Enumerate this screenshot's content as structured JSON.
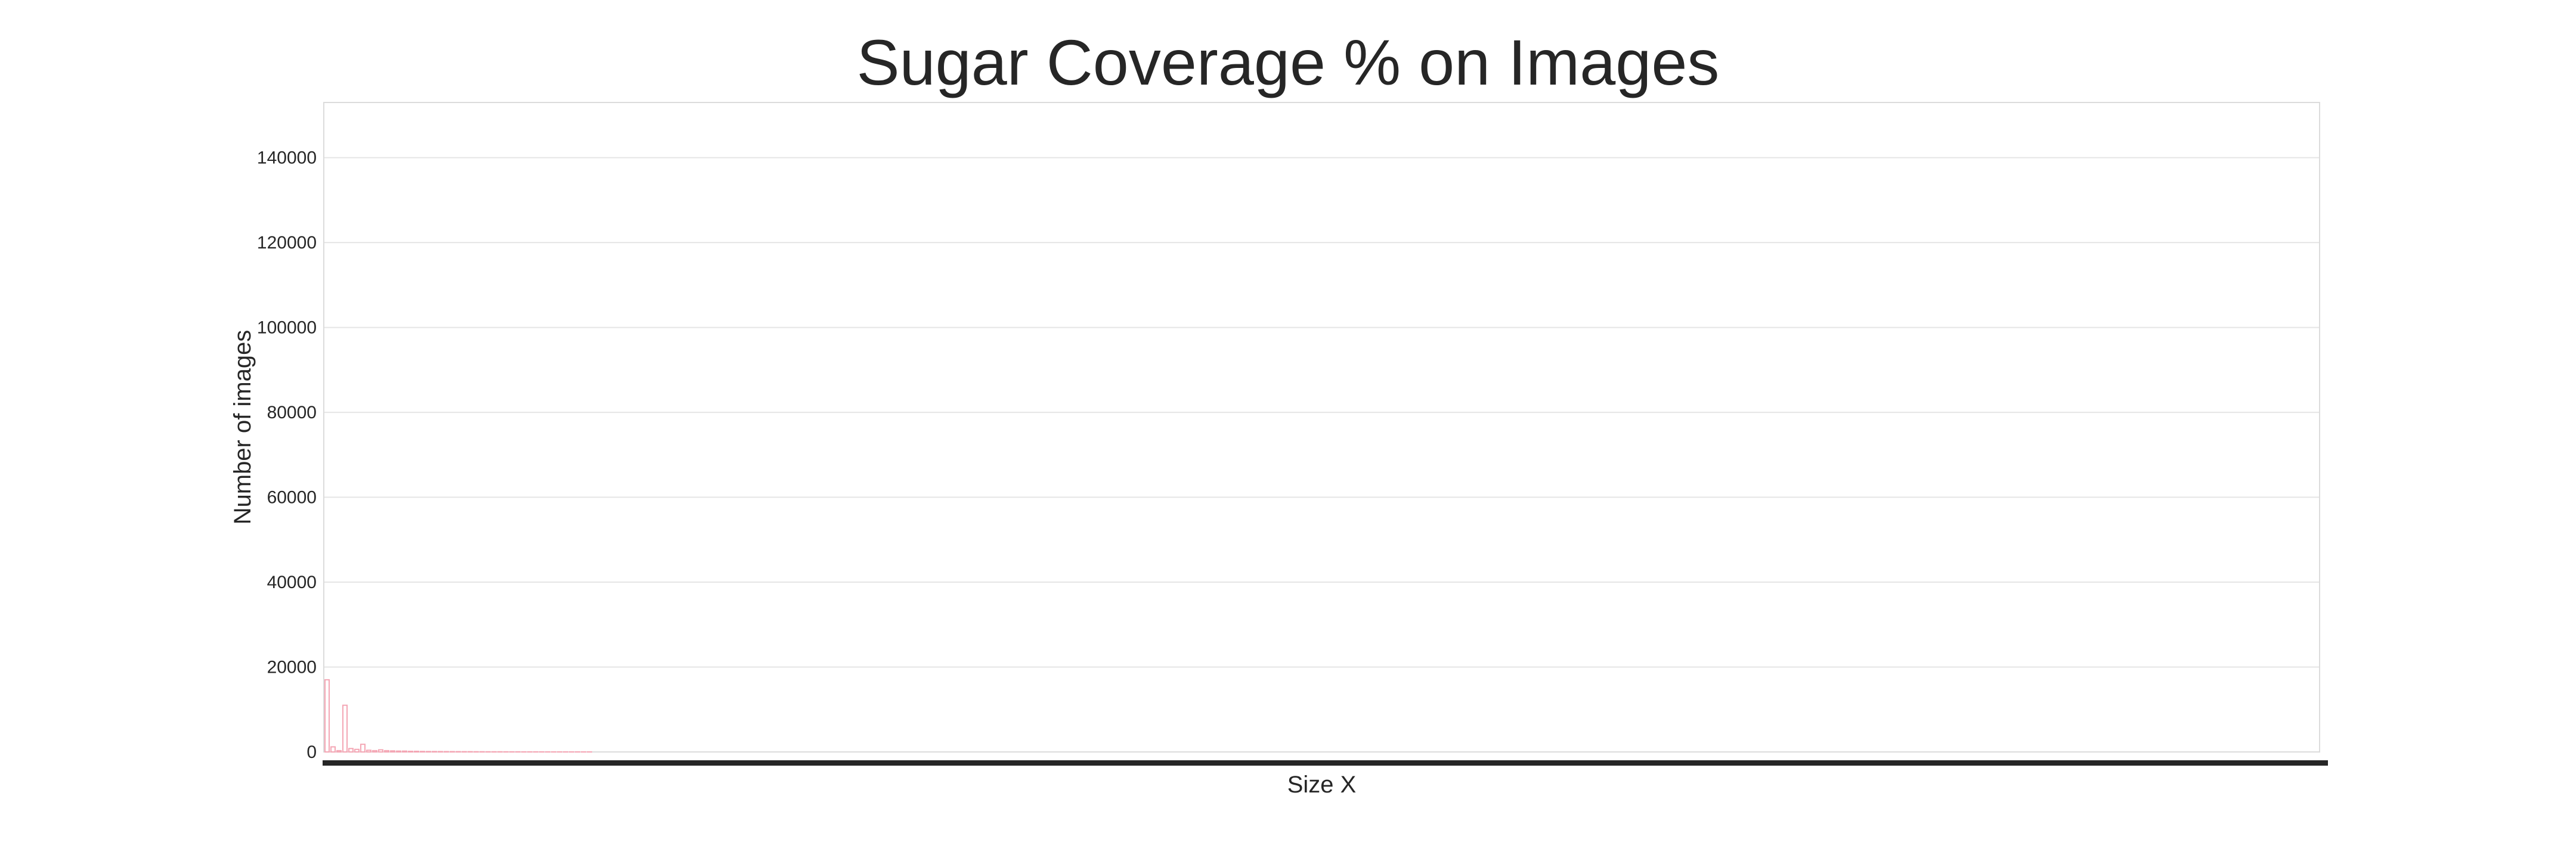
{
  "chart_data": {
    "type": "bar",
    "title": "Sugar Coverage % on Images",
    "xlabel": "Size X",
    "ylabel": "Number of images",
    "ylim": [
      0,
      153000
    ],
    "yticks": [
      0,
      20000,
      40000,
      60000,
      80000,
      100000,
      120000,
      140000
    ],
    "grid": true,
    "x_tick_labels_visible": false,
    "bar_color": "#f4a6b4",
    "values": [
      17000,
      1200,
      300,
      11000,
      800,
      600,
      1800,
      400,
      300,
      500,
      300,
      250,
      200,
      200,
      150,
      150,
      120,
      100,
      100,
      90,
      80,
      80,
      70,
      60,
      60,
      50,
      50,
      40,
      40,
      40,
      30,
      30,
      30,
      20,
      20,
      20,
      20,
      15,
      15,
      15,
      10,
      10,
      10,
      10,
      10
    ]
  },
  "colors": {
    "grid": "#e5e5e5",
    "frame": "#dcdcdc",
    "baseline": "#262626",
    "text": "#262626"
  }
}
